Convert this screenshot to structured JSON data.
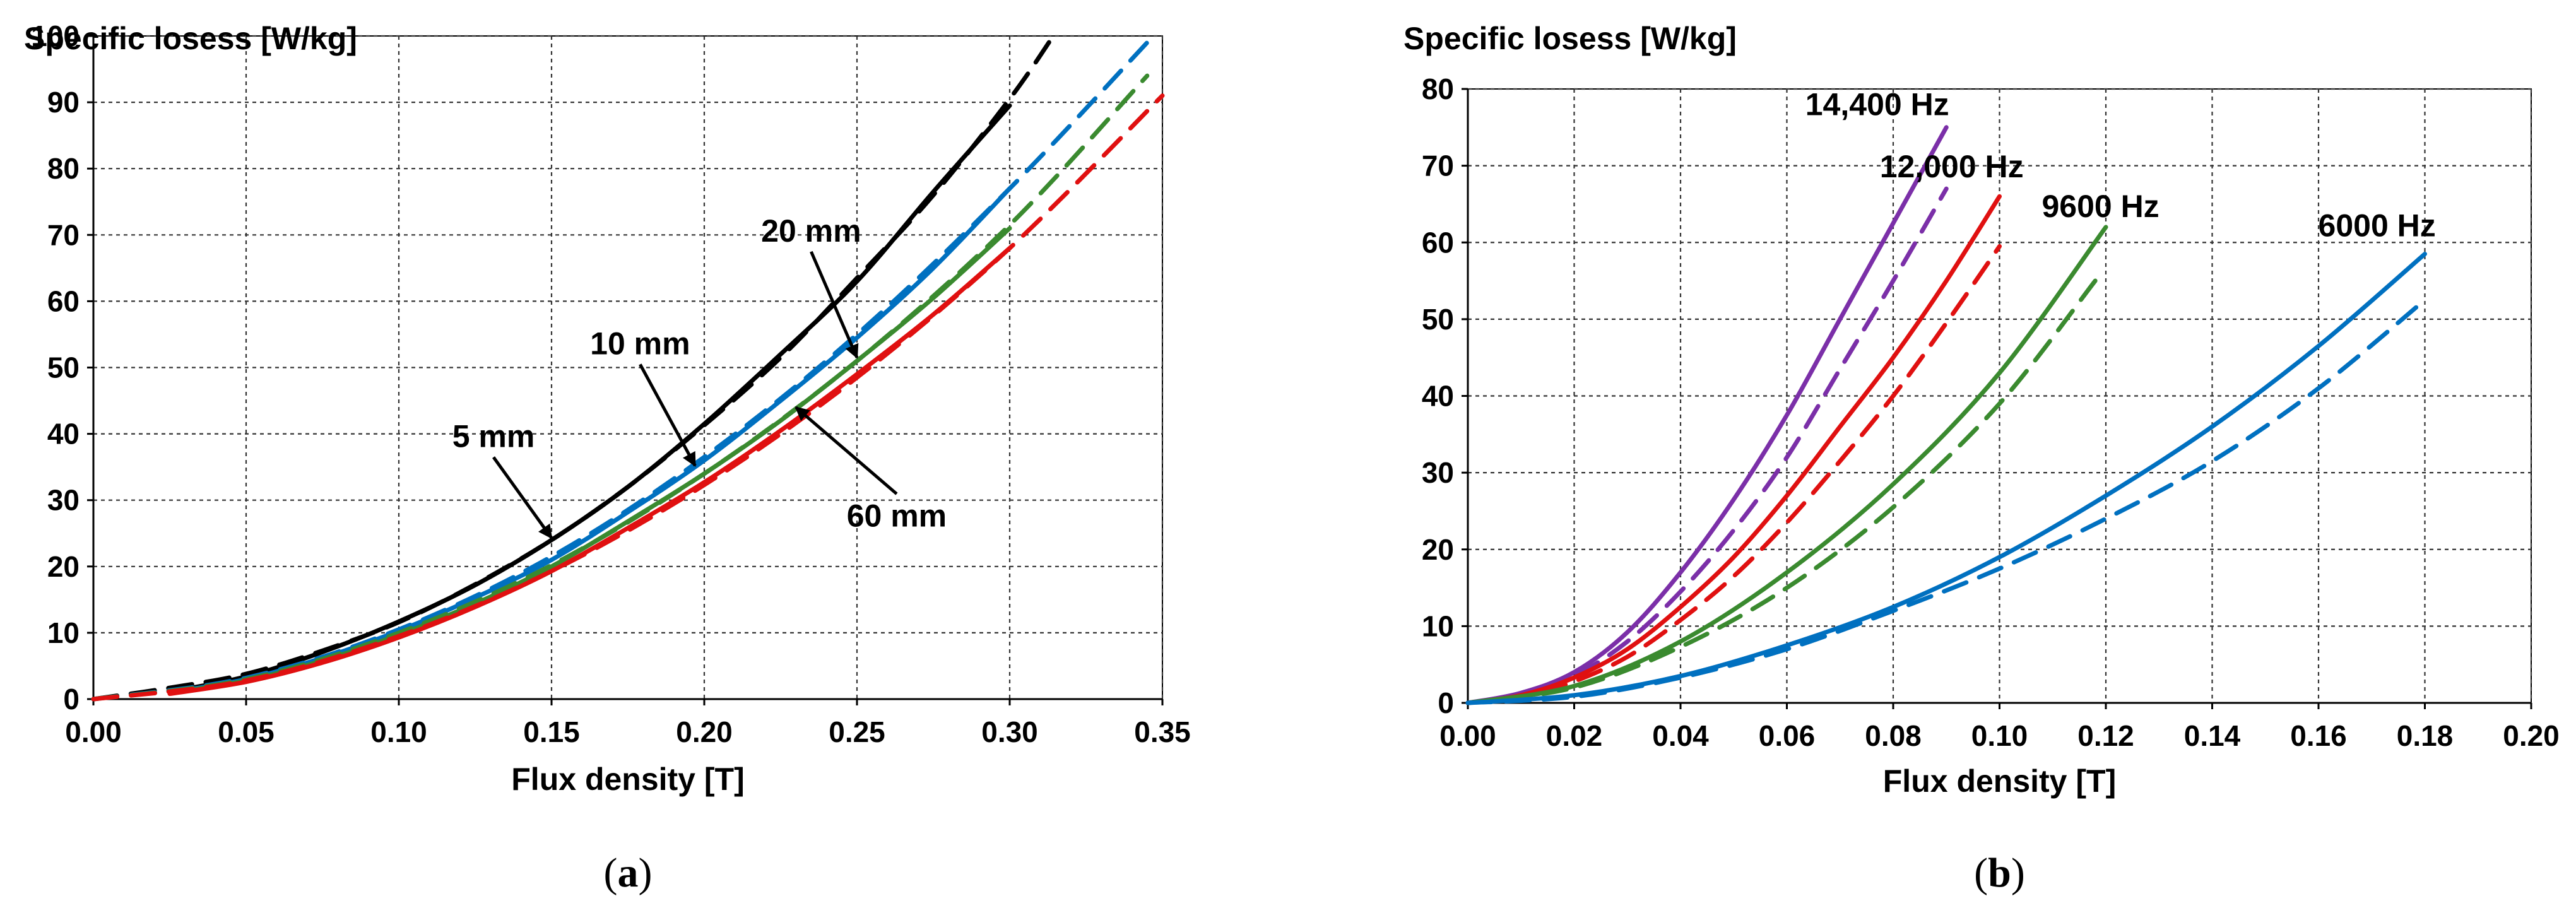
{
  "chart_data": [
    {
      "type": "line",
      "panel_label": "a",
      "title": "Specific losess [W/kg]",
      "xlabel": "Flux density [T]",
      "xlim": [
        0,
        0.35
      ],
      "ylim": [
        0,
        100
      ],
      "xticks": [
        "0.00",
        "0.05",
        "0.10",
        "0.15",
        "0.20",
        "0.25",
        "0.30",
        "0.35"
      ],
      "yticks": [
        "0",
        "10",
        "20",
        "30",
        "40",
        "50",
        "60",
        "70",
        "80",
        "90",
        "100"
      ],
      "grid": true,
      "series": [
        {
          "name": "5 mm measured",
          "color": "#000000",
          "style": "solid",
          "x": [
            0.025,
            0.05,
            0.075,
            0.1,
            0.125,
            0.15,
            0.175,
            0.2,
            0.225,
            0.25,
            0.275,
            0.3
          ],
          "y": [
            1.1,
            3.4,
            7.1,
            11.7,
            17.2,
            24.0,
            32.0,
            41.5,
            52.0,
            63.0,
            76.5,
            89.5
          ]
        },
        {
          "name": "5 mm calculated",
          "color": "#000000",
          "style": "dashed",
          "x": [
            0,
            0.025,
            0.05,
            0.075,
            0.1,
            0.125,
            0.15,
            0.175,
            0.2,
            0.225,
            0.25,
            0.275,
            0.3,
            0.315
          ],
          "y": [
            0,
            1.7,
            3.8,
            7.3,
            11.6,
            17.3,
            24.0,
            32.0,
            41.3,
            51.5,
            63.5,
            76.0,
            90.5,
            100.5
          ]
        },
        {
          "name": "10 mm measured",
          "color": "#0070C0",
          "style": "solid",
          "x": [
            0.025,
            0.05,
            0.075,
            0.1,
            0.125,
            0.15,
            0.175,
            0.2,
            0.225,
            0.25,
            0.275,
            0.3
          ],
          "y": [
            1.0,
            3.0,
            6.2,
            10.3,
            15.3,
            21.0,
            28.2,
            36.0,
            45.0,
            54.5,
            65.0,
            77.0
          ]
        },
        {
          "name": "10 mm calculated",
          "color": "#0070C0",
          "style": "dashed",
          "x": [
            0,
            0.05,
            0.1,
            0.15,
            0.2,
            0.25,
            0.3,
            0.345
          ],
          "y": [
            0,
            3.2,
            10.5,
            21.5,
            36.5,
            55.0,
            77.0,
            99.0
          ]
        },
        {
          "name": "20 mm measured",
          "color": "#3A8A2F",
          "style": "solid",
          "x": [
            0.025,
            0.05,
            0.075,
            0.1,
            0.125,
            0.15,
            0.175,
            0.2,
            0.225,
            0.25,
            0.275,
            0.3
          ],
          "y": [
            0.9,
            2.8,
            5.8,
            9.7,
            14.4,
            20.0,
            26.8,
            34.0,
            42.0,
            51.0,
            60.5,
            71.0
          ]
        },
        {
          "name": "20 mm calculated",
          "color": "#3A8A2F",
          "style": "dashed",
          "x": [
            0,
            0.05,
            0.1,
            0.15,
            0.2,
            0.25,
            0.3,
            0.345
          ],
          "y": [
            0,
            3.0,
            10.0,
            20.2,
            34.0,
            51.0,
            71.5,
            94.0
          ]
        },
        {
          "name": "60 mm measured",
          "color": "#E01010",
          "style": "solid",
          "x": [
            0.025,
            0.05,
            0.075,
            0.1,
            0.125,
            0.15,
            0.175,
            0.2,
            0.225,
            0.25,
            0.275,
            0.3
          ],
          "y": [
            0.8,
            2.6,
            5.5,
            9.3,
            13.9,
            19.3,
            25.8,
            32.7,
            40.5,
            49.0,
            58.0,
            68.0
          ]
        },
        {
          "name": "60 mm calculated",
          "color": "#E01010",
          "style": "dashed",
          "x": [
            0,
            0.05,
            0.1,
            0.15,
            0.2,
            0.25,
            0.3,
            0.35
          ],
          "y": [
            0,
            2.8,
            9.5,
            19.3,
            32.3,
            48.5,
            68.0,
            91.0
          ]
        }
      ],
      "annotations": [
        {
          "text": "5 mm",
          "label_x": 0.131,
          "label_y": 38,
          "arrow_to_x": 0.15,
          "arrow_to_y": 24.3
        },
        {
          "text": "10 mm",
          "label_x": 0.179,
          "label_y": 52,
          "arrow_to_x": 0.197,
          "arrow_to_y": 35.2
        },
        {
          "text": "20 mm",
          "label_x": 0.235,
          "label_y": 69,
          "arrow_to_x": 0.25,
          "arrow_to_y": 51.5
        },
        {
          "text": "60 mm",
          "label_x": 0.263,
          "label_y": 26,
          "arrow_to_x": 0.23,
          "arrow_to_y": 44.0
        }
      ]
    },
    {
      "type": "line",
      "panel_label": "b",
      "title": "Specific losess [W/kg]",
      "xlabel": "Flux density [T]",
      "xlim": [
        0,
        0.2
      ],
      "ylim": [
        0,
        80
      ],
      "xticks": [
        "0.00",
        "0.02",
        "0.04",
        "0.06",
        "0.08",
        "0.10",
        "0.12",
        "0.14",
        "0.16",
        "0.18",
        "0.20"
      ],
      "yticks": [
        "0",
        "10",
        "20",
        "30",
        "40",
        "50",
        "60",
        "70",
        "80"
      ],
      "grid": true,
      "series": [
        {
          "name": "14,400 Hz measured",
          "color": "#7B2FA8",
          "style": "solid",
          "x": [
            0,
            0.01,
            0.02,
            0.03,
            0.04,
            0.05,
            0.06,
            0.07,
            0.08,
            0.09
          ],
          "y": [
            0,
            1.3,
            4.0,
            9.2,
            17.0,
            26.5,
            37.5,
            50.0,
            62.5,
            75.0
          ]
        },
        {
          "name": "14,400 Hz calculated",
          "color": "#7B2FA8",
          "style": "dashed",
          "x": [
            0,
            0.01,
            0.02,
            0.03,
            0.04,
            0.05,
            0.06,
            0.07,
            0.08,
            0.09
          ],
          "y": [
            0,
            1.0,
            3.5,
            8.0,
            14.5,
            22.5,
            32.0,
            43.5,
            55.0,
            67.0
          ]
        },
        {
          "name": "12,000 Hz measured",
          "color": "#E01010",
          "style": "solid",
          "x": [
            0,
            0.01,
            0.02,
            0.03,
            0.04,
            0.05,
            0.06,
            0.07,
            0.08,
            0.09,
            0.1
          ],
          "y": [
            0,
            1.0,
            3.3,
            7.0,
            12.5,
            19.0,
            27.0,
            36.0,
            45.0,
            55.0,
            66.0
          ]
        },
        {
          "name": "12,000 Hz calculated",
          "color": "#E01010",
          "style": "dashed",
          "x": [
            0,
            0.01,
            0.02,
            0.03,
            0.04,
            0.05,
            0.06,
            0.07,
            0.08,
            0.09,
            0.1
          ],
          "y": [
            0,
            0.8,
            2.8,
            6.0,
            10.8,
            16.5,
            23.5,
            31.5,
            40.0,
            49.5,
            59.5
          ]
        },
        {
          "name": "9600 Hz measured",
          "color": "#3A8A2F",
          "style": "solid",
          "x": [
            0,
            0.02,
            0.04,
            0.06,
            0.08,
            0.1,
            0.12
          ],
          "y": [
            0,
            2.2,
            8.0,
            17.0,
            28.5,
            43.0,
            62.0
          ]
        },
        {
          "name": "9600 Hz calculated",
          "color": "#3A8A2F",
          "style": "dashed",
          "x": [
            0,
            0.02,
            0.04,
            0.06,
            0.08,
            0.1,
            0.118
          ],
          "y": [
            0,
            2.0,
            7.3,
            15.0,
            25.5,
            39.0,
            55.0
          ]
        },
        {
          "name": "6000 Hz measured",
          "color": "#0070C0",
          "style": "solid",
          "x": [
            0,
            0.02,
            0.04,
            0.06,
            0.08,
            0.1,
            0.12,
            0.14,
            0.16,
            0.18
          ],
          "y": [
            0,
            1.0,
            3.5,
            7.5,
            12.5,
            19.0,
            27.0,
            36.0,
            46.5,
            58.5
          ]
        },
        {
          "name": "6000 Hz calculated",
          "color": "#0070C0",
          "style": "dashed",
          "x": [
            0,
            0.02,
            0.04,
            0.06,
            0.08,
            0.1,
            0.12,
            0.14,
            0.16,
            0.18
          ],
          "y": [
            0,
            0.8,
            3.3,
            7.0,
            12.0,
            17.5,
            24.0,
            31.5,
            41.0,
            52.5
          ]
        }
      ],
      "annotations": [
        {
          "text": "14,400 Hz",
          "label_x": 0.077,
          "label_y": 76.6
        },
        {
          "text": "12,000 Hz",
          "label_x": 0.091,
          "label_y": 68.5
        },
        {
          "text": "9600 Hz",
          "label_x": 0.119,
          "label_y": 63.3
        },
        {
          "text": "6000 Hz",
          "label_x": 0.171,
          "label_y": 60.8
        }
      ]
    }
  ]
}
